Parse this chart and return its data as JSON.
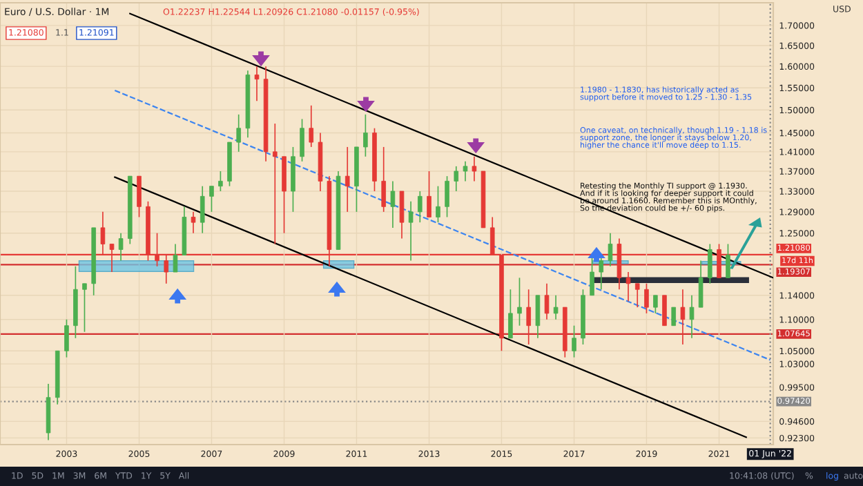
{
  "chart_data": {
    "type": "candlestick",
    "x": [
      "2002-07",
      "2002-10",
      "2003-01",
      "2003-04",
      "2003-07",
      "2003-10",
      "2004-01",
      "2004-04",
      "2004-07",
      "2004-10",
      "2005-01",
      "2005-04",
      "2005-07",
      "2005-10",
      "2006-01",
      "2006-04",
      "2006-07",
      "2006-10",
      "2007-01",
      "2007-04",
      "2007-07",
      "2007-10",
      "2008-01",
      "2008-04",
      "2008-07",
      "2008-10",
      "2009-01",
      "2009-04",
      "2009-07",
      "2009-10",
      "2010-01",
      "2010-04",
      "2010-07",
      "2010-10",
      "2011-01",
      "2011-04",
      "2011-07",
      "2011-10",
      "2012-01",
      "2012-04",
      "2012-07",
      "2012-10",
      "2013-01",
      "2013-04",
      "2013-07",
      "2013-10",
      "2014-01",
      "2014-04",
      "2014-07",
      "2014-10",
      "2015-01",
      "2015-04",
      "2015-07",
      "2015-10",
      "2016-01",
      "2016-04",
      "2016-07",
      "2016-10",
      "2017-01",
      "2017-04",
      "2017-07",
      "2017-10",
      "2018-01",
      "2018-04",
      "2018-07",
      "2018-10",
      "2019-01",
      "2019-04",
      "2019-07",
      "2019-10",
      "2020-01",
      "2020-04",
      "2020-07",
      "2020-10",
      "2021-01",
      "2021-04"
    ],
    "ohlc": [
      [
        0.93,
        1.0,
        0.92,
        0.98
      ],
      [
        0.98,
        1.05,
        0.97,
        1.05
      ],
      [
        1.05,
        1.1,
        1.04,
        1.09
      ],
      [
        1.09,
        1.19,
        1.07,
        1.15
      ],
      [
        1.15,
        1.16,
        1.08,
        1.16
      ],
      [
        1.16,
        1.26,
        1.14,
        1.26
      ],
      [
        1.26,
        1.29,
        1.21,
        1.23
      ],
      [
        1.23,
        1.23,
        1.18,
        1.22
      ],
      [
        1.22,
        1.25,
        1.2,
        1.24
      ],
      [
        1.24,
        1.36,
        1.23,
        1.36
      ],
      [
        1.36,
        1.36,
        1.28,
        1.3
      ],
      [
        1.3,
        1.31,
        1.2,
        1.21
      ],
      [
        1.21,
        1.25,
        1.19,
        1.2
      ],
      [
        1.2,
        1.21,
        1.16,
        1.18
      ],
      [
        1.18,
        1.23,
        1.18,
        1.21
      ],
      [
        1.21,
        1.3,
        1.21,
        1.28
      ],
      [
        1.28,
        1.29,
        1.25,
        1.27
      ],
      [
        1.27,
        1.34,
        1.25,
        1.32
      ],
      [
        1.32,
        1.34,
        1.29,
        1.34
      ],
      [
        1.34,
        1.37,
        1.33,
        1.35
      ],
      [
        1.35,
        1.43,
        1.34,
        1.43
      ],
      [
        1.43,
        1.49,
        1.41,
        1.46
      ],
      [
        1.46,
        1.59,
        1.44,
        1.58
      ],
      [
        1.58,
        1.6,
        1.52,
        1.57
      ],
      [
        1.57,
        1.6,
        1.39,
        1.41
      ],
      [
        1.41,
        1.47,
        1.23,
        1.4
      ],
      [
        1.4,
        1.4,
        1.25,
        1.33
      ],
      [
        1.33,
        1.42,
        1.29,
        1.4
      ],
      [
        1.4,
        1.48,
        1.39,
        1.46
      ],
      [
        1.46,
        1.51,
        1.42,
        1.43
      ],
      [
        1.43,
        1.45,
        1.33,
        1.35
      ],
      [
        1.35,
        1.36,
        1.19,
        1.22
      ],
      [
        1.22,
        1.37,
        1.22,
        1.36
      ],
      [
        1.36,
        1.42,
        1.29,
        1.34
      ],
      [
        1.34,
        1.42,
        1.29,
        1.42
      ],
      [
        1.42,
        1.49,
        1.4,
        1.45
      ],
      [
        1.45,
        1.46,
        1.33,
        1.35
      ],
      [
        1.35,
        1.42,
        1.29,
        1.3
      ],
      [
        1.3,
        1.35,
        1.26,
        1.33
      ],
      [
        1.33,
        1.33,
        1.24,
        1.27
      ],
      [
        1.27,
        1.31,
        1.2,
        1.29
      ],
      [
        1.29,
        1.33,
        1.27,
        1.32
      ],
      [
        1.32,
        1.37,
        1.28,
        1.28
      ],
      [
        1.28,
        1.34,
        1.27,
        1.3
      ],
      [
        1.3,
        1.36,
        1.28,
        1.35
      ],
      [
        1.35,
        1.38,
        1.33,
        1.37
      ],
      [
        1.37,
        1.39,
        1.35,
        1.38
      ],
      [
        1.38,
        1.4,
        1.35,
        1.37
      ],
      [
        1.37,
        1.37,
        1.26,
        1.26
      ],
      [
        1.26,
        1.28,
        1.21,
        1.21
      ],
      [
        1.21,
        1.21,
        1.05,
        1.07
      ],
      [
        1.07,
        1.15,
        1.07,
        1.11
      ],
      [
        1.11,
        1.17,
        1.09,
        1.12
      ],
      [
        1.12,
        1.15,
        1.06,
        1.09
      ],
      [
        1.09,
        1.14,
        1.07,
        1.14
      ],
      [
        1.14,
        1.16,
        1.1,
        1.11
      ],
      [
        1.11,
        1.14,
        1.1,
        1.12
      ],
      [
        1.12,
        1.12,
        1.04,
        1.05
      ],
      [
        1.05,
        1.09,
        1.04,
        1.07
      ],
      [
        1.07,
        1.15,
        1.06,
        1.14
      ],
      [
        1.14,
        1.21,
        1.14,
        1.18
      ],
      [
        1.18,
        1.21,
        1.15,
        1.2
      ],
      [
        1.2,
        1.25,
        1.19,
        1.23
      ],
      [
        1.23,
        1.24,
        1.15,
        1.17
      ],
      [
        1.17,
        1.18,
        1.13,
        1.16
      ],
      [
        1.16,
        1.16,
        1.12,
        1.15
      ],
      [
        1.15,
        1.16,
        1.11,
        1.12
      ],
      [
        1.12,
        1.14,
        1.11,
        1.14
      ],
      [
        1.14,
        1.14,
        1.09,
        1.09
      ],
      [
        1.09,
        1.12,
        1.09,
        1.12
      ],
      [
        1.12,
        1.15,
        1.06,
        1.1
      ],
      [
        1.1,
        1.14,
        1.07,
        1.12
      ],
      [
        1.12,
        1.2,
        1.12,
        1.17
      ],
      [
        1.17,
        1.23,
        1.16,
        1.22
      ],
      [
        1.22,
        1.23,
        1.17,
        1.17
      ],
      [
        1.17,
        1.23,
        1.17,
        1.21
      ]
    ],
    "colors": [
      "#4caf50",
      "#4caf50",
      "#4caf50",
      "#4caf50",
      "#4caf50",
      "#4caf50",
      "#e53935",
      "#e53935",
      "#4caf50",
      "#4caf50",
      "#e53935",
      "#e53935",
      "#e53935",
      "#e53935",
      "#4caf50",
      "#4caf50",
      "#e53935",
      "#4caf50",
      "#4caf50",
      "#4caf50",
      "#4caf50",
      "#4caf50",
      "#4caf50",
      "#e53935",
      "#e53935",
      "#e53935",
      "#e53935",
      "#4caf50",
      "#4caf50",
      "#e53935",
      "#e53935",
      "#e53935",
      "#4caf50",
      "#e53935",
      "#4caf50",
      "#4caf50",
      "#e53935",
      "#e53935",
      "#4caf50",
      "#e53935",
      "#4caf50",
      "#4caf50",
      "#e53935",
      "#4caf50",
      "#4caf50",
      "#4caf50",
      "#4caf50",
      "#e53935",
      "#e53935",
      "#e53935",
      "#e53935",
      "#4caf50",
      "#4caf50",
      "#e53935",
      "#4caf50",
      "#e53935",
      "#4caf50",
      "#e53935",
      "#4caf50",
      "#4caf50",
      "#4caf50",
      "#4caf50",
      "#4caf50",
      "#e53935",
      "#e53935",
      "#e53935",
      "#e53935",
      "#4caf50",
      "#e53935",
      "#4caf50",
      "#e53935",
      "#4caf50",
      "#4caf50",
      "#4caf50",
      "#e53935",
      "#4caf50"
    ],
    "series": [
      {
        "type": "line",
        "x": [
          "2004-10",
          "2022-07"
        ],
        "values": [
          1.73,
          1.17
        ],
        "color": "#000000"
      },
      {
        "type": "line",
        "x": [
          "2004-05",
          "2021-10"
        ],
        "values": [
          1.358,
          0.924
        ],
        "color": "#000000"
      },
      {
        "type": "line",
        "x": [
          "2004-05",
          "2022-06"
        ],
        "values": [
          1.544,
          1.036
        ],
        "color": "#3d85f0",
        "line_style": "dashed"
      },
      {
        "type": "line",
        "x": [
          "2017-08",
          "2021-10"
        ],
        "values": [
          1.166,
          1.166
        ],
        "color": "#2b2f3a"
      }
    ],
    "log": true,
    "xlim": [
      "2001-03",
      "2022-07"
    ],
    "xticks": [
      {
        "value": "2003-01",
        "label": "2003"
      },
      {
        "value": "2005-01",
        "label": "2005"
      },
      {
        "value": "2007-01",
        "label": "2007"
      },
      {
        "value": "2009-01",
        "label": "2009"
      },
      {
        "value": "2011-01",
        "label": "2011"
      },
      {
        "value": "2013-01",
        "label": "2013"
      },
      {
        "value": "2015-01",
        "label": "2015"
      },
      {
        "value": "2017-01",
        "label": "2017"
      },
      {
        "value": "2019-01",
        "label": "2019"
      },
      {
        "value": "2021-01",
        "label": "2021"
      }
    ],
    "ylim": [
      0.914,
      1.758
    ],
    "yticks": [
      {
        "value": 0.923,
        "label": "0.92300"
      },
      {
        "value": 0.946,
        "label": "0.94600"
      },
      {
        "value": 0.995,
        "label": "0.99500"
      },
      {
        "value": 1.03,
        "label": "1.03000"
      },
      {
        "value": 1.05,
        "label": "1.05000"
      },
      {
        "value": 1.1,
        "label": "1.10000"
      },
      {
        "value": 1.14,
        "label": "1.14000"
      },
      {
        "value": 1.25,
        "label": "1.25000"
      },
      {
        "value": 1.29,
        "label": "1.29000"
      },
      {
        "value": 1.33,
        "label": "1.33000"
      },
      {
        "value": 1.37,
        "label": "1.37000"
      },
      {
        "value": 1.41,
        "label": "1.41000"
      },
      {
        "value": 1.45,
        "label": "1.45000"
      },
      {
        "value": 1.5,
        "label": "1.50000"
      },
      {
        "value": 1.55,
        "label": "1.55000"
      },
      {
        "value": 1.6,
        "label": "1.60000"
      },
      {
        "value": 1.65,
        "label": "1.65000"
      },
      {
        "value": 1.7,
        "label": "1.70000"
      }
    ],
    "grid": true,
    "ref_lines": [
      {
        "axis": "y",
        "value": 1.2108,
        "label": "1.21080",
        "color": "#e53935",
        "line_style": "solid"
      },
      {
        "axis": "y",
        "value": 1.19307,
        "label": "1.19307",
        "color": "#d32f2f",
        "line_style": "solid"
      },
      {
        "axis": "y",
        "value": 1.07645,
        "label": "1.07645",
        "color": "#d32f2f",
        "line_style": "solid"
      },
      {
        "axis": "y",
        "value": 0.9742,
        "label": "0.97420",
        "color": "#888888",
        "line_style": "dotted"
      },
      {
        "axis": "x",
        "value": "2022-06-01",
        "label": "01 Jun '22",
        "color": "#888888",
        "line_style": "dotted"
      }
    ],
    "annotations": [
      "Euro / U.S. Dollar · 1M",
      "O1.22237 H1.22544 L1.20926 C1.21080 -0.01157 (-0.95%)",
      "1.21080",
      "1.1",
      "1.21091",
      "1.1980 - 1.1830, has historically acted as\nsupport before it moved to 1.25 - 1.30 - 1.35",
      "One caveat, on technically, though 1.19 - 1.18 is\nsupport zone, the longer it stays below 1.20,\nhigher the chance it'll move deep to 1.15.",
      "Retesting the Monthly TI support @ 1.1930.\nAnd if it is looking for deeper support it could\nbe around 1.1660. Remember this is MOnthly,\nSo the deviation could be +/- 60 pips.",
      "17d 11h",
      "USD",
      "1D   5D   1M   3M   6M   YTD   1Y   5Y   All",
      "10:41:08 (UTC)",
      "%",
      "log",
      "auto"
    ]
  }
}
